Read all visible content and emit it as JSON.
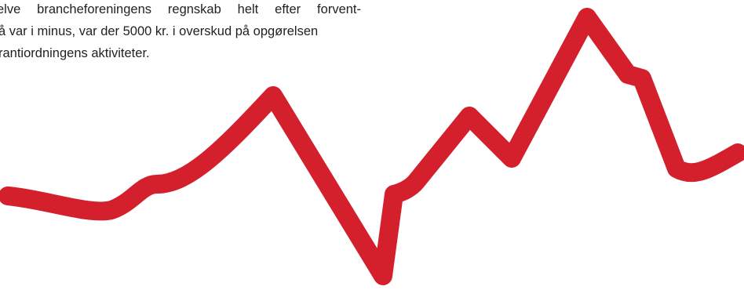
{
  "text": {
    "lines": [
      "elve brancheforeningens regnskab helt efter forvent-",
      "å var i minus, var der 5000 kr. i overskud på opgørelsen",
      "rantiordningens aktiviteter."
    ]
  },
  "graphic": {
    "kind": "decorative red zigzag line",
    "color": "#d4202c"
  }
}
